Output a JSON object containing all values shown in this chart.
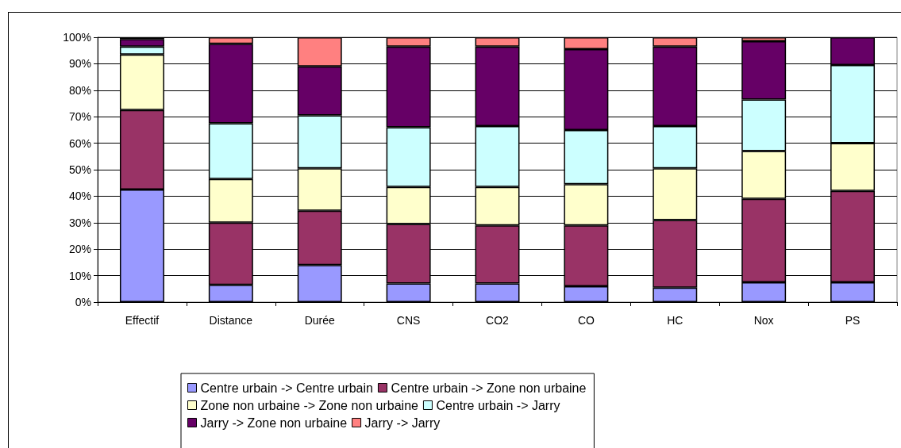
{
  "chart_data": {
    "type": "bar",
    "stacked": true,
    "categories": [
      "Effectif",
      "Distance",
      "Durée",
      "CNS",
      "CO2",
      "CO",
      "HC",
      "Nox",
      "PS"
    ],
    "series": [
      {
        "name": "Centre urbain -> Centre urbain",
        "color": "#9999ff",
        "values": [
          42.5,
          6.5,
          14,
          7,
          7,
          6,
          5.5,
          7.5,
          7.5
        ]
      },
      {
        "name": "Centre urbain -> Zone non urbaine",
        "color": "#993366",
        "values": [
          30,
          23.5,
          20.5,
          22.5,
          22,
          23,
          25.5,
          31.5,
          34.5
        ]
      },
      {
        "name": "Zone non urbaine -> Zone non urbaine",
        "color": "#ffffcc",
        "values": [
          21,
          16.5,
          16,
          14,
          14.5,
          15.5,
          19.5,
          18,
          18
        ]
      },
      {
        "name": "Centre urbain -> Jarry",
        "color": "#ccffff",
        "values": [
          3,
          21,
          20,
          22.5,
          23,
          20.5,
          16,
          19.5,
          29.5
        ]
      },
      {
        "name": "Jarry -> Zone non urbaine",
        "color": "#660066",
        "values": [
          2.8,
          30,
          18.5,
          30.5,
          30,
          30.5,
          30,
          22,
          10.5
        ]
      },
      {
        "name": "Jarry -> Jarry",
        "color": "#ff8080",
        "values": [
          0.7,
          2.5,
          11,
          3.5,
          3.5,
          4.5,
          3.5,
          1.5,
          null
        ]
      }
    ],
    "ylim": [
      0,
      100
    ],
    "yticks": [
      {
        "value": 0,
        "label": "0%"
      },
      {
        "value": 10,
        "label": "10%"
      },
      {
        "value": 20,
        "label": "20%"
      },
      {
        "value": 30,
        "label": "30%"
      },
      {
        "value": 40,
        "label": "40%"
      },
      {
        "value": 50,
        "label": "50%"
      },
      {
        "value": 60,
        "label": "60%"
      },
      {
        "value": 70,
        "label": "70%"
      },
      {
        "value": 80,
        "label": "80%"
      },
      {
        "value": 90,
        "label": "90%"
      },
      {
        "value": 100,
        "label": "100%"
      }
    ],
    "grid": "y",
    "legend": "bottom"
  }
}
